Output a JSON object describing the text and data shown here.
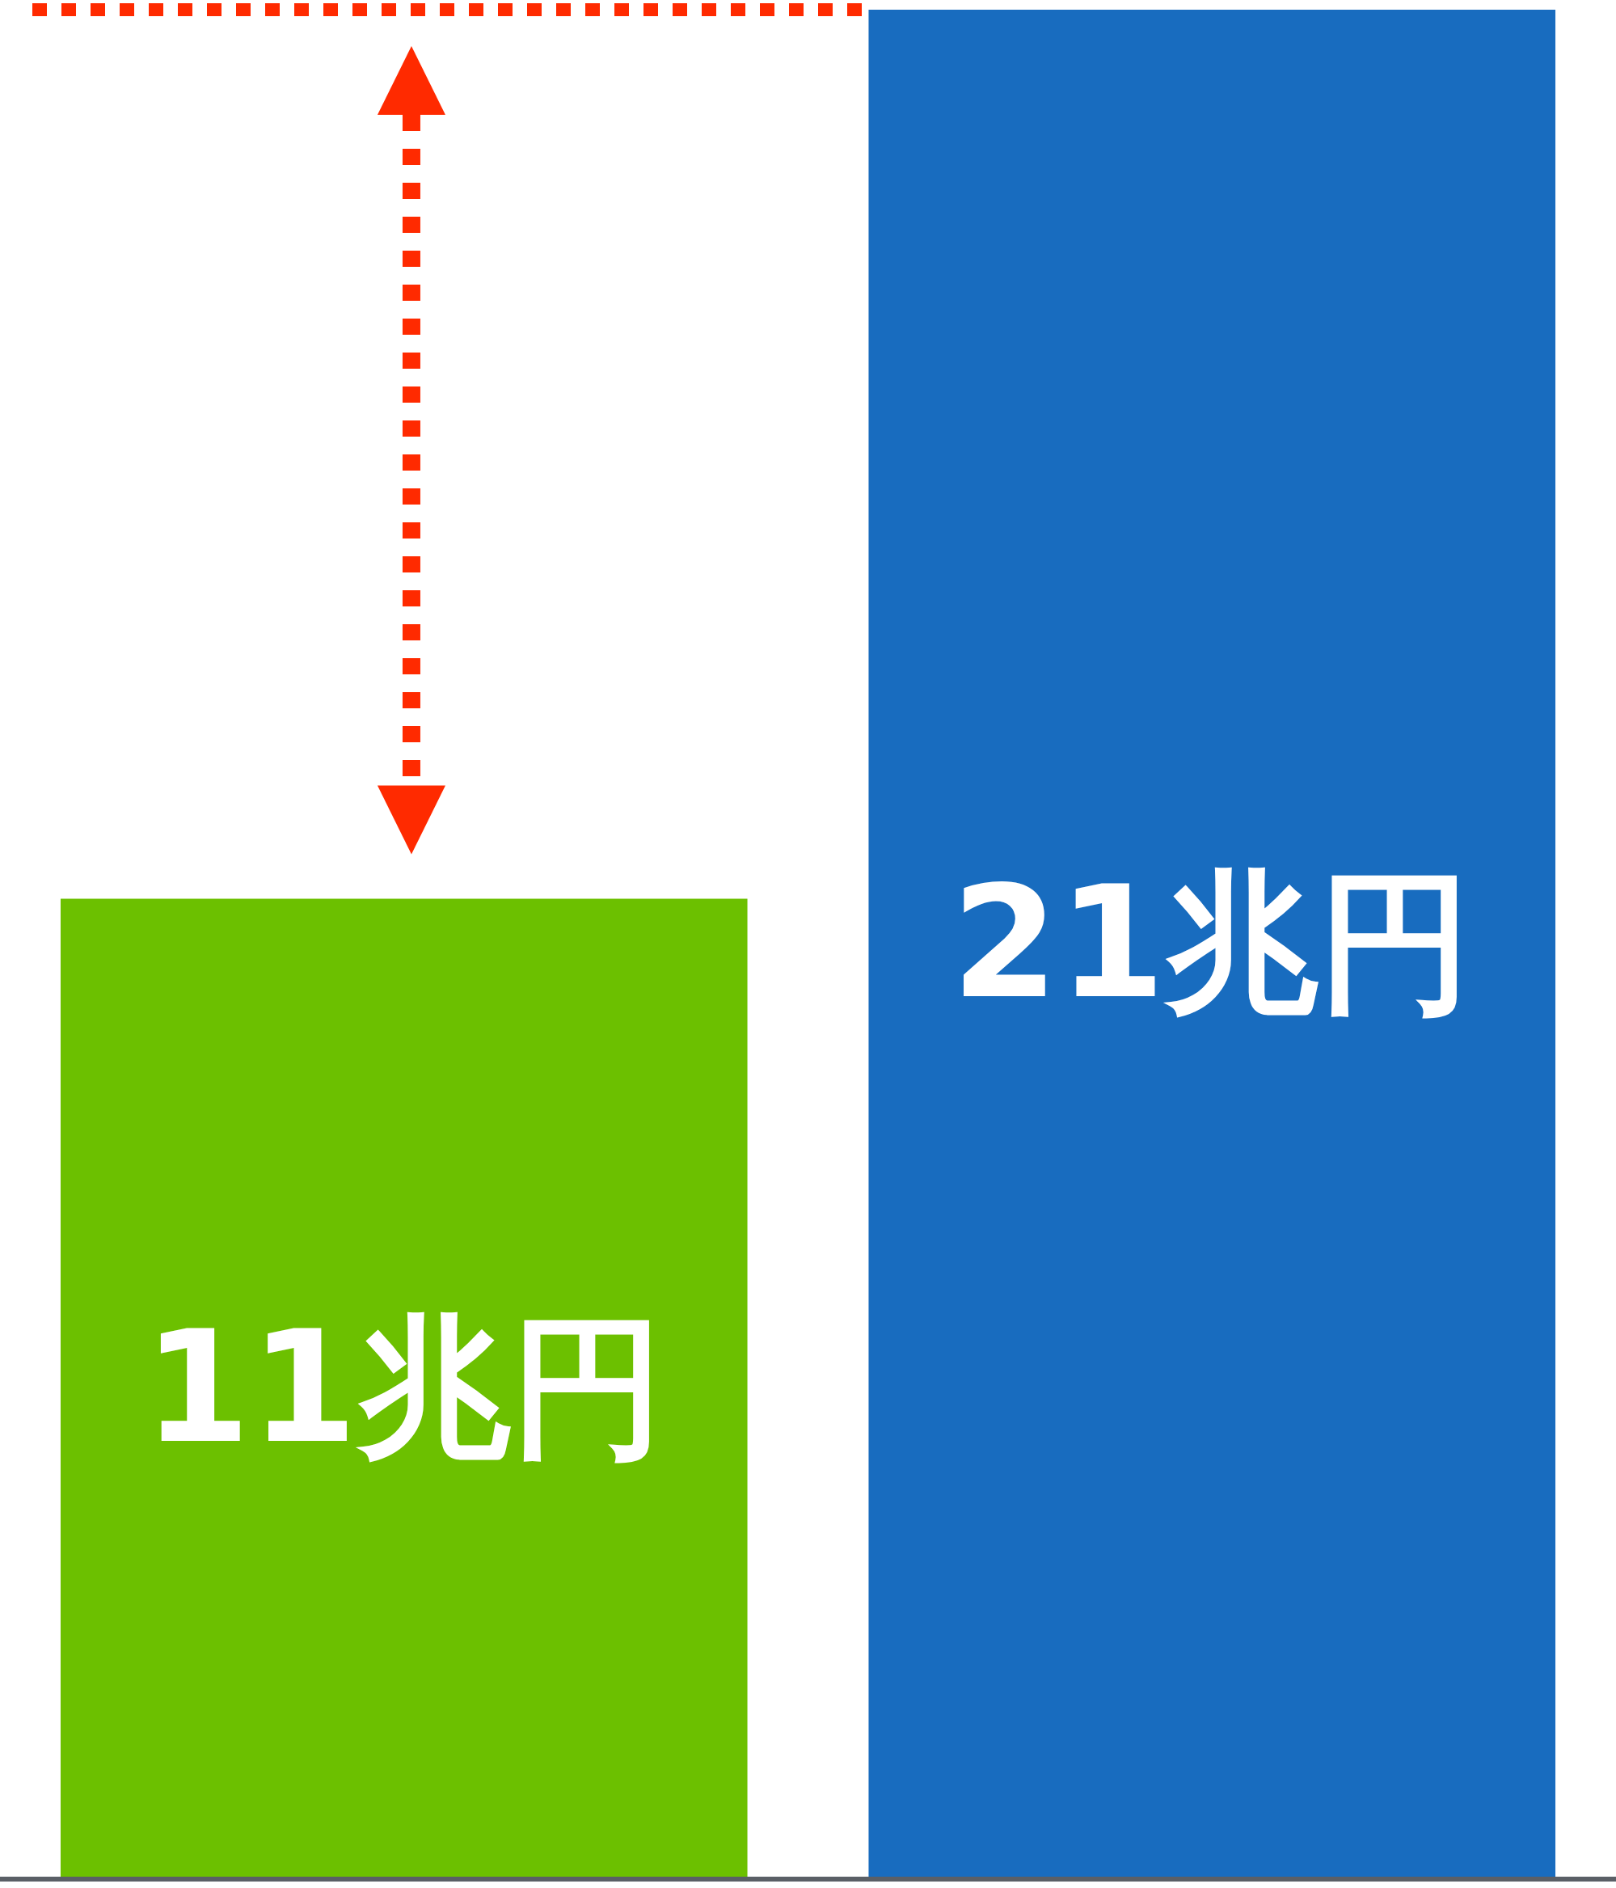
{
  "chart_data": {
    "type": "bar",
    "categories": [
      null,
      null
    ],
    "values": [
      11,
      21
    ],
    "value_labels": [
      "11兆円",
      "21兆円"
    ],
    "colors": [
      "#6cc000",
      "#186cbf"
    ],
    "ref_lines": [
      {
        "axis": "y",
        "value": 21,
        "color": "#ff2a00",
        "line_style": "dotted"
      }
    ]
  }
}
